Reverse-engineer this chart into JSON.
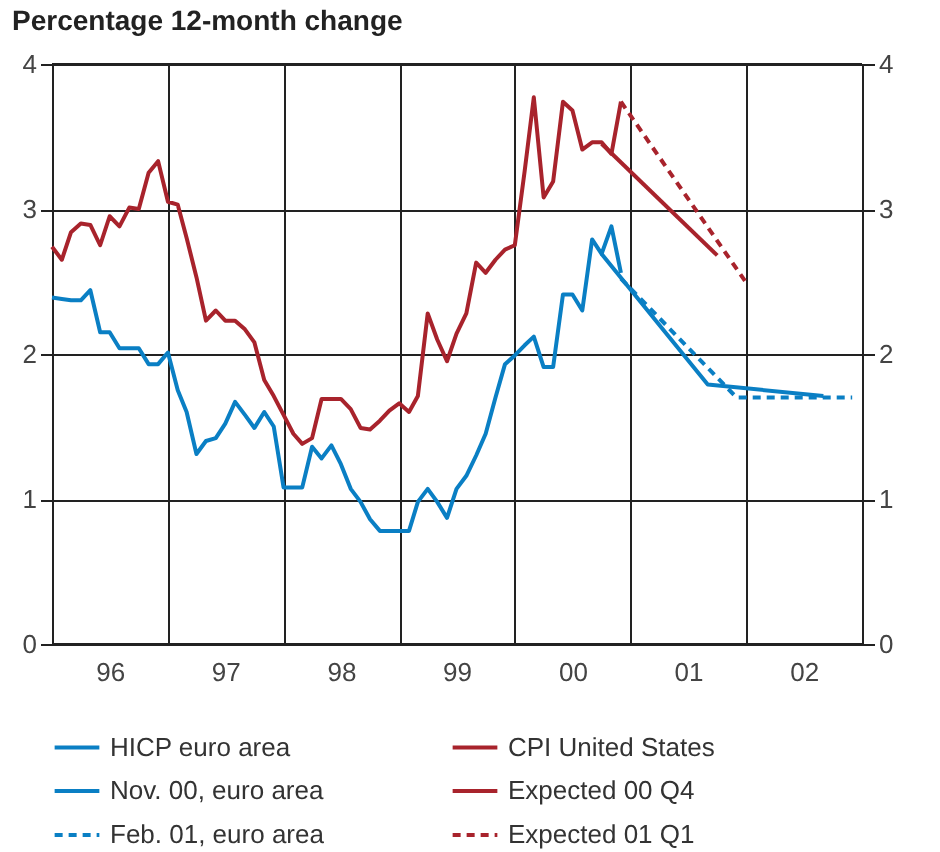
{
  "chart_data": {
    "type": "line",
    "title": "Percentage 12-month change",
    "x": [
      "1996-01",
      "1996-02",
      "1996-03",
      "1996-04",
      "1996-05",
      "1996-06",
      "1996-07",
      "1996-08",
      "1996-09",
      "1996-10",
      "1996-11",
      "1996-12",
      "1997-01",
      "1997-02",
      "1997-03",
      "1997-04",
      "1997-05",
      "1997-06",
      "1997-07",
      "1997-08",
      "1997-09",
      "1997-10",
      "1997-11",
      "1997-12",
      "1998-01",
      "1998-02",
      "1998-03",
      "1998-04",
      "1998-05",
      "1998-06",
      "1998-07",
      "1998-08",
      "1998-09",
      "1998-10",
      "1998-11",
      "1998-12",
      "1999-01",
      "1999-02",
      "1999-03",
      "1999-04",
      "1999-05",
      "1999-06",
      "1999-07",
      "1999-08",
      "1999-09",
      "1999-10",
      "1999-11",
      "1999-12",
      "2000-01",
      "2000-02",
      "2000-03",
      "2000-04",
      "2000-05",
      "2000-06",
      "2000-07",
      "2000-08",
      "2000-09",
      "2000-10",
      "2000-11",
      "2000-12"
    ],
    "series": [
      {
        "name": "HICP euro area",
        "color": "#0a7fc4",
        "line_style": "solid",
        "values": [
          2.39,
          2.38,
          2.37,
          2.37,
          2.44,
          2.15,
          2.15,
          2.04,
          2.04,
          2.04,
          1.93,
          1.93,
          2.01,
          1.75,
          1.6,
          1.31,
          1.4,
          1.42,
          1.52,
          1.67,
          1.58,
          1.49,
          1.6,
          1.5,
          1.08,
          1.08,
          1.08,
          1.36,
          1.28,
          1.37,
          1.24,
          1.07,
          0.98,
          0.86,
          0.78,
          0.78,
          0.78,
          0.78,
          0.98,
          1.07,
          0.98,
          0.87,
          1.07,
          1.16,
          1.3,
          1.45,
          1.7,
          1.93,
          1.99,
          2.06,
          2.12,
          1.91,
          1.91,
          2.41,
          2.41,
          2.3,
          2.79,
          2.69,
          2.88,
          2.56
        ]
      },
      {
        "name": "Nov. 00, euro area",
        "color": "#0a7fc4",
        "line_style": "solid",
        "x": [
          "2000-10",
          "2001-09",
          "2002-09"
        ],
        "values": [
          2.69,
          1.79,
          1.71
        ]
      },
      {
        "name": "Feb. 01, euro area",
        "color": "#0a7fc4",
        "line_style": "dashed",
        "x": [
          "2000-12",
          "2001-12",
          "2002-12"
        ],
        "values": [
          2.52,
          1.7,
          1.7
        ]
      },
      {
        "name": "CPI United States",
        "color": "#a8232c",
        "line_style": "solid",
        "values": [
          2.74,
          2.65,
          2.84,
          2.9,
          2.89,
          2.75,
          2.95,
          2.88,
          3.01,
          3.0,
          3.25,
          3.33,
          3.05,
          3.03,
          2.8,
          2.53,
          2.23,
          2.3,
          2.23,
          2.23,
          2.17,
          2.08,
          1.82,
          1.71,
          1.58,
          1.45,
          1.38,
          1.42,
          1.69,
          1.69,
          1.69,
          1.62,
          1.49,
          1.48,
          1.54,
          1.61,
          1.66,
          1.6,
          1.71,
          2.28,
          2.1,
          1.95,
          2.14,
          2.28,
          2.63,
          2.56,
          2.65,
          2.72,
          2.75,
          3.26,
          3.77,
          3.08,
          3.19,
          3.74,
          3.68,
          3.41,
          3.46,
          3.46,
          3.38,
          3.74
        ]
      },
      {
        "name": "Expected 00 Q4",
        "color": "#a8232c",
        "line_style": "solid",
        "x": [
          "2000-10",
          "2001-10"
        ],
        "values": [
          3.45,
          2.68
        ]
      },
      {
        "name": "Expected 01 Q1",
        "color": "#a8232c",
        "line_style": "dashed",
        "x": [
          "2000-12",
          "2002-01"
        ],
        "values": [
          3.74,
          2.49
        ]
      }
    ],
    "xlim": [
      "1996-01",
      "2003-01"
    ],
    "xticks": [
      {
        "value": "1996-01",
        "label": null
      },
      {
        "value": "1996-07",
        "label": "96"
      },
      {
        "value": "1997-01",
        "label": null
      },
      {
        "value": "1997-07",
        "label": "97"
      },
      {
        "value": "1998-01",
        "label": null
      },
      {
        "value": "1998-07",
        "label": "98"
      },
      {
        "value": "1999-01",
        "label": null
      },
      {
        "value": "1999-07",
        "label": "99"
      },
      {
        "value": "2000-01",
        "label": null
      },
      {
        "value": "2000-07",
        "label": "00"
      },
      {
        "value": "2001-01",
        "label": null
      },
      {
        "value": "2001-07",
        "label": "01"
      },
      {
        "value": "2002-01",
        "label": null
      },
      {
        "value": "2002-07",
        "label": "02"
      },
      {
        "value": "2003-01",
        "label": null
      }
    ],
    "ylim": [
      0,
      4
    ],
    "yticks": [
      0,
      1,
      2,
      3,
      4
    ],
    "y2lim": [
      0,
      4
    ],
    "y2ticks": [
      0,
      1,
      2,
      3,
      4
    ],
    "grid": true,
    "legend": "bottom"
  }
}
